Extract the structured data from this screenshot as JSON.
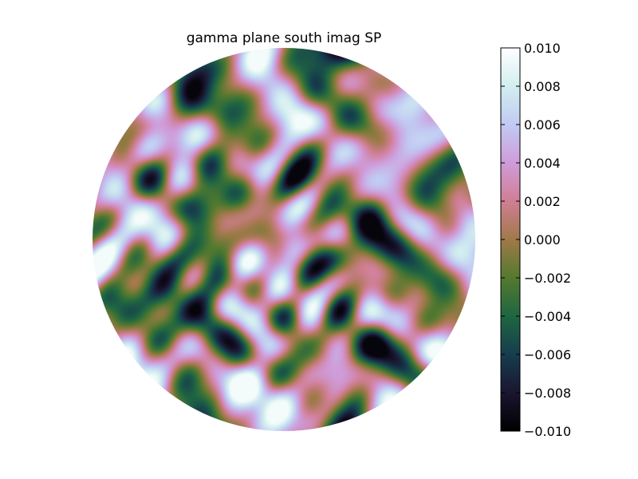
{
  "chart_data": {
    "type": "heatmap",
    "title": "gamma plane south imag SP",
    "shape": "circular disk",
    "colormap": "cubehelix",
    "colorbar": {
      "vmin": -0.01,
      "vmax": 0.01,
      "ticks": [
        "0.010",
        "0.008",
        "0.006",
        "0.004",
        "0.002",
        "0.000",
        "−0.002",
        "−0.004",
        "−0.006",
        "−0.008",
        "−0.010"
      ],
      "tick_values": [
        0.01,
        0.008,
        0.006,
        0.004,
        0.002,
        0.0,
        -0.002,
        -0.004,
        -0.006,
        -0.008,
        -0.01
      ]
    },
    "pattern": "diagonal crosshatch of pink (+0.002 to +0.004) and green (-0.002 to -0.004) patches, finer near center, a few dark spots near -0.008 at lower left and lower right"
  }
}
